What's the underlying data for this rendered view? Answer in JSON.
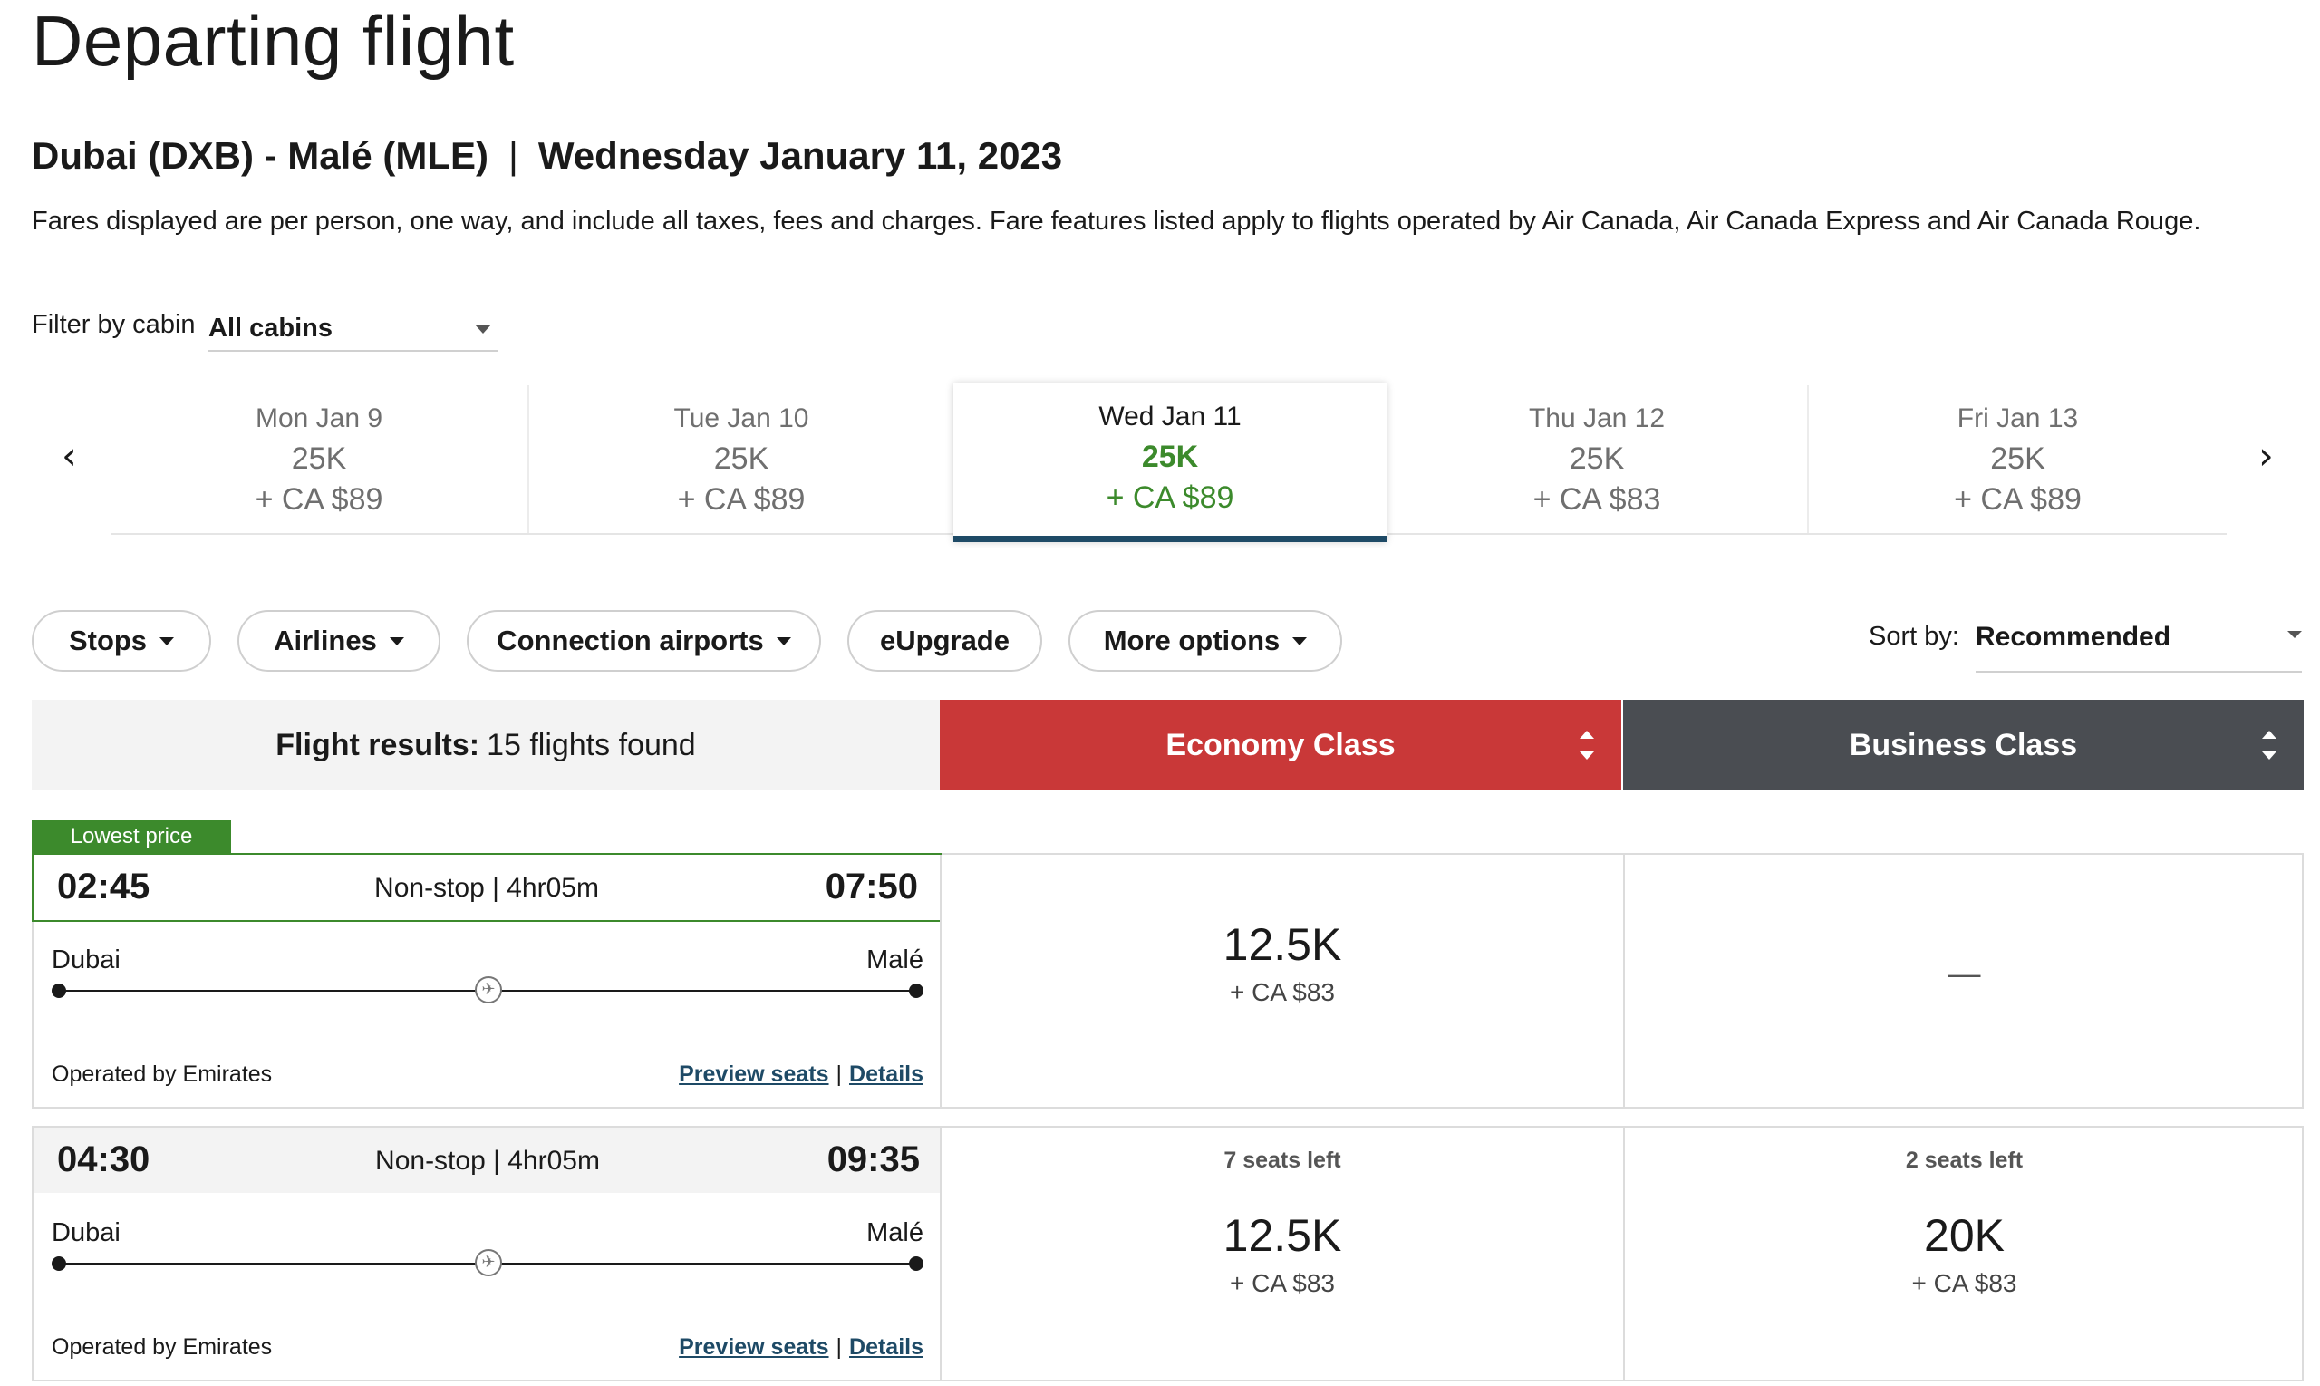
{
  "page": {
    "title": "Departing flight",
    "route": "Dubai (DXB) - Malé (MLE)",
    "route_sep": "|",
    "date": "Wednesday January 11, 2023",
    "disclaimer": "Fares displayed are per person, one way, and include all taxes, fees and charges. Fare features listed apply to flights operated by Air Canada, Air Canada Express and Air Canada Rouge."
  },
  "filter": {
    "label": "Filter by cabin",
    "value": "All cabins"
  },
  "dates": [
    {
      "day": "Mon Jan 9",
      "points": "25K",
      "fee": "+ CA $89"
    },
    {
      "day": "Tue Jan 10",
      "points": "25K",
      "fee": "+ CA $89"
    },
    {
      "day": "Wed Jan 11",
      "points": "25K",
      "fee": "+ CA $89"
    },
    {
      "day": "Thu Jan 12",
      "points": "25K",
      "fee": "+ CA $83"
    },
    {
      "day": "Fri Jan 13",
      "points": "25K",
      "fee": "+ CA $89"
    }
  ],
  "nav": {
    "prev": "‹",
    "next": "›"
  },
  "pills": {
    "stops": "Stops",
    "airlines": "Airlines",
    "connection": "Connection airports",
    "eupgrade": "eUpgrade",
    "more": "More options"
  },
  "sort": {
    "label": "Sort by:",
    "value": "Recommended"
  },
  "results": {
    "label": "Flight results:",
    "count": "15 flights found"
  },
  "classes": {
    "economy": "Economy Class",
    "business": "Business Class"
  },
  "badge": "Lowest price",
  "flights": [
    {
      "depart": "02:45",
      "arrive": "07:50",
      "duration": "Non-stop | 4hr05m",
      "from": "Dubai",
      "to": "Malé",
      "operated": "Operated by Emirates",
      "preview": "Preview seats",
      "details": "Details",
      "economy": {
        "points": "12.5K",
        "fee": "+ CA $83"
      },
      "business": {
        "dash": "—"
      }
    },
    {
      "depart": "04:30",
      "arrive": "09:35",
      "duration": "Non-stop | 4hr05m",
      "from": "Dubai",
      "to": "Malé",
      "operated": "Operated by Emirates",
      "preview": "Preview seats",
      "details": "Details",
      "economy": {
        "seats": "7 seats left",
        "points": "12.5K",
        "fee": "+ CA $83"
      },
      "business": {
        "seats": "2 seats left",
        "points": "20K",
        "fee": "+ CA $83"
      }
    }
  ],
  "links_sep": "|",
  "colors": {
    "green": "#3c8a2c",
    "economy": "#c93838",
    "business": "#4a4d52",
    "navy": "#1e4a66"
  },
  "icons": {
    "plane": "plane-icon",
    "caret": "chevron-down-icon",
    "sort": "sort-arrows-icon"
  }
}
